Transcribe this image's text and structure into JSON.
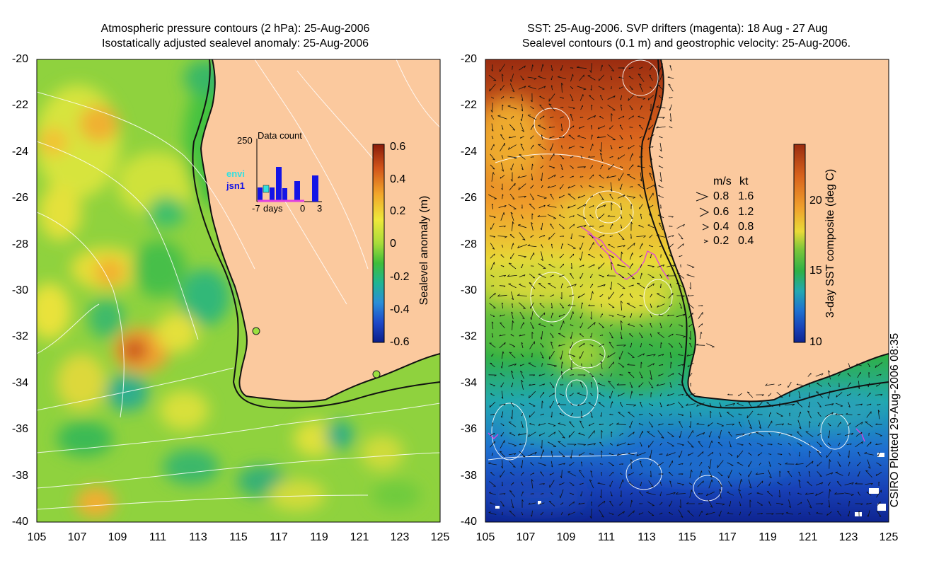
{
  "left_panel": {
    "title_line1": "Atmospheric pressure contours (2 hPa): 25-Aug-2006",
    "title_line2": "Isostatically adjusted sealevel anomaly: 25-Aug-2006",
    "colorbar_label": "Sealevel anomaly (m)",
    "colorbar_ticks": [
      "0.6",
      "0.4",
      "0.2",
      "0",
      "-0.2",
      "-0.4",
      "-0.6"
    ],
    "colorbar_colors": [
      "#8a1c0a",
      "#d2541a",
      "#f2a52a",
      "#eee83a",
      "#a8dc3a",
      "#3fbd3a",
      "#20b592",
      "#2a8ed8",
      "#1e48c8",
      "#0a1e8a"
    ],
    "inset": {
      "title": "Data count",
      "max_label": "250",
      "legend_envi": "envi",
      "legend_jsn1": "jsn1",
      "xtick_left": "-7",
      "xtick_days": "days",
      "xtick_zero": "0",
      "xtick_three": "3",
      "envi_color": "#33e0e0",
      "jsn1_color": "#1414e6"
    }
  },
  "right_panel": {
    "title_line1": "SST: 25-Aug-2006. SVP drifters (magenta): 18 Aug - 27 Aug",
    "title_line2": "Sealevel contours (0.1 m) and geostrophic velocity: 25-Aug-2006.",
    "colorbar_label": "3-day SST composite (deg C)",
    "colorbar_ticks": [
      "20",
      "15",
      "10"
    ],
    "colorbar_colors": [
      "#8a1c0a",
      "#c8481a",
      "#ee9a2a",
      "#eee43a",
      "#9ed43a",
      "#35b540",
      "#22b0a0",
      "#2a8ed8",
      "#1e48c8",
      "#0a1a82"
    ],
    "velocity_legend": {
      "header_ms": "m/s",
      "header_kt": "kt",
      "rows": [
        {
          "ms": "0.8",
          "kt": "1.6"
        },
        {
          "ms": "0.6",
          "kt": "1.2"
        },
        {
          "ms": "0.4",
          "kt": "0.8"
        },
        {
          "ms": "0.2",
          "kt": "0.4"
        }
      ]
    },
    "drifter_color": "#e040e0"
  },
  "axes": {
    "y_ticks": [
      "-20",
      "-22",
      "-24",
      "-26",
      "-28",
      "-30",
      "-32",
      "-34",
      "-36",
      "-38",
      "-40"
    ],
    "x_ticks": [
      "105",
      "107",
      "109",
      "111",
      "113",
      "115",
      "117",
      "119",
      "121",
      "123",
      "125"
    ]
  },
  "colors": {
    "land": "#fbc99e",
    "coast": "#111111"
  },
  "credit": "CSIRO Plotted 29-Aug-2006 08:35"
}
